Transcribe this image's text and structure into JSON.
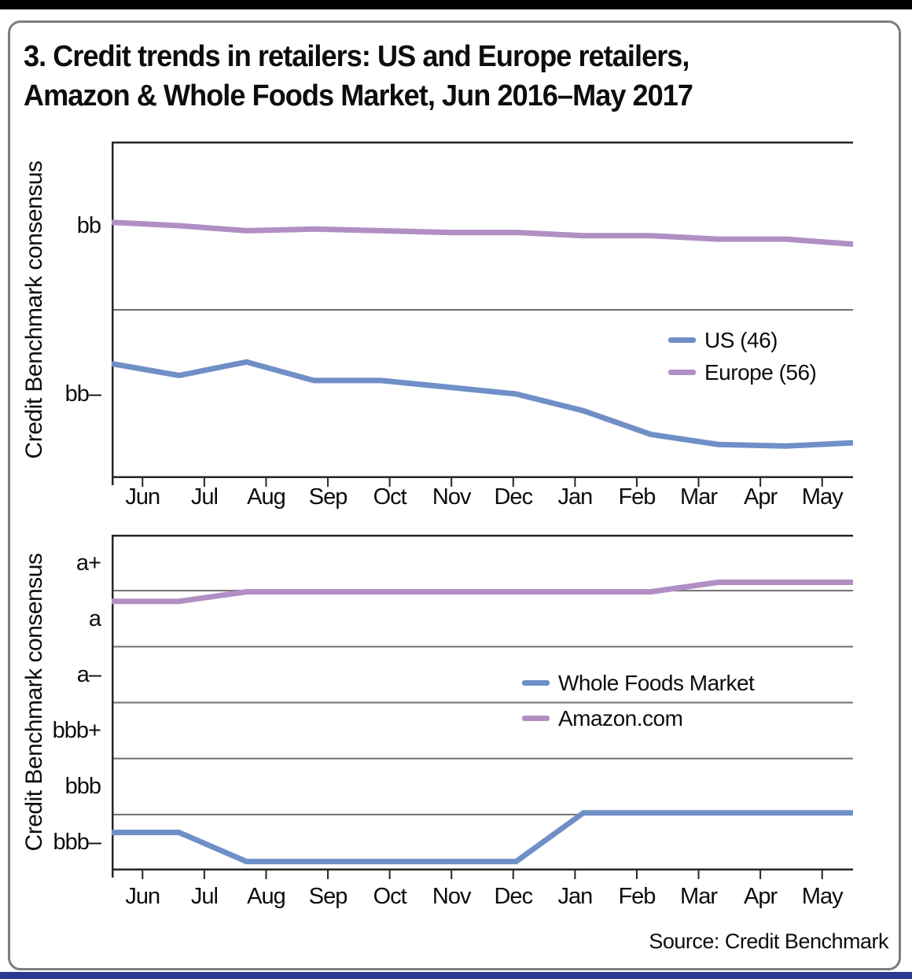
{
  "page": {
    "title_line1": "3. Credit trends in retailers: US and Europe retailers,",
    "title_line2": "Amazon & Whole Foods Market, Jun 2016–May 2017",
    "source": "Source: Credit Benchmark"
  },
  "chart_data": [
    {
      "type": "line",
      "title": "US and Europe retailers credit trend",
      "ylabel": "Credit Benchmark consensus",
      "categories": [
        "Jun",
        "Jul",
        "Aug",
        "Sep",
        "Oct",
        "Nov",
        "Dec",
        "Jan",
        "Feb",
        "Mar",
        "Apr",
        "May"
      ],
      "y_tick_labels": [
        "bb",
        "bb–"
      ],
      "num_bands": 2,
      "value_unit": "rating band index (bb– = 1, bb = 2; gridline at 1.5)",
      "grid": "horizontal band boundaries",
      "legend_position": "inside-right",
      "series": [
        {
          "name": "US (46)",
          "color": "#6F8FC7",
          "values": [
            1.18,
            1.11,
            1.19,
            1.08,
            1.08,
            1.04,
            1.0,
            0.9,
            0.76,
            0.7,
            0.69,
            0.71
          ]
        },
        {
          "name": "Europe (56)",
          "color": "#B18FC4",
          "values": [
            2.02,
            2.0,
            1.97,
            1.98,
            1.97,
            1.96,
            1.96,
            1.94,
            1.94,
            1.92,
            1.92,
            1.89
          ]
        }
      ]
    },
    {
      "type": "line",
      "title": "Amazon and Whole Foods Market credit trend",
      "ylabel": "Credit Benchmark consensus",
      "categories": [
        "Jun",
        "Jul",
        "Aug",
        "Sep",
        "Oct",
        "Nov",
        "Dec",
        "Jan",
        "Feb",
        "Mar",
        "Apr",
        "May"
      ],
      "y_tick_labels": [
        "a+",
        "a",
        "a–",
        "bbb+",
        "bbb",
        "bbb–"
      ],
      "num_bands": 6,
      "value_unit": "rating band index (bbb– = 1, bbb = 2, bbb+ = 3, a– = 4, a = 5, a+ = 6)",
      "grid": "horizontal band boundaries",
      "legend_position": "inside-center",
      "series": [
        {
          "name": "Whole Foods Market",
          "color": "#6F8FC7",
          "values": [
            1.18,
            1.18,
            0.66,
            0.66,
            0.66,
            0.66,
            0.66,
            1.53,
            1.53,
            1.53,
            1.53,
            1.53
          ]
        },
        {
          "name": "Amazon.com",
          "color": "#B18FC4",
          "values": [
            5.31,
            5.31,
            5.48,
            5.48,
            5.48,
            5.48,
            5.48,
            5.48,
            5.48,
            5.65,
            5.65,
            5.65
          ]
        }
      ]
    }
  ]
}
